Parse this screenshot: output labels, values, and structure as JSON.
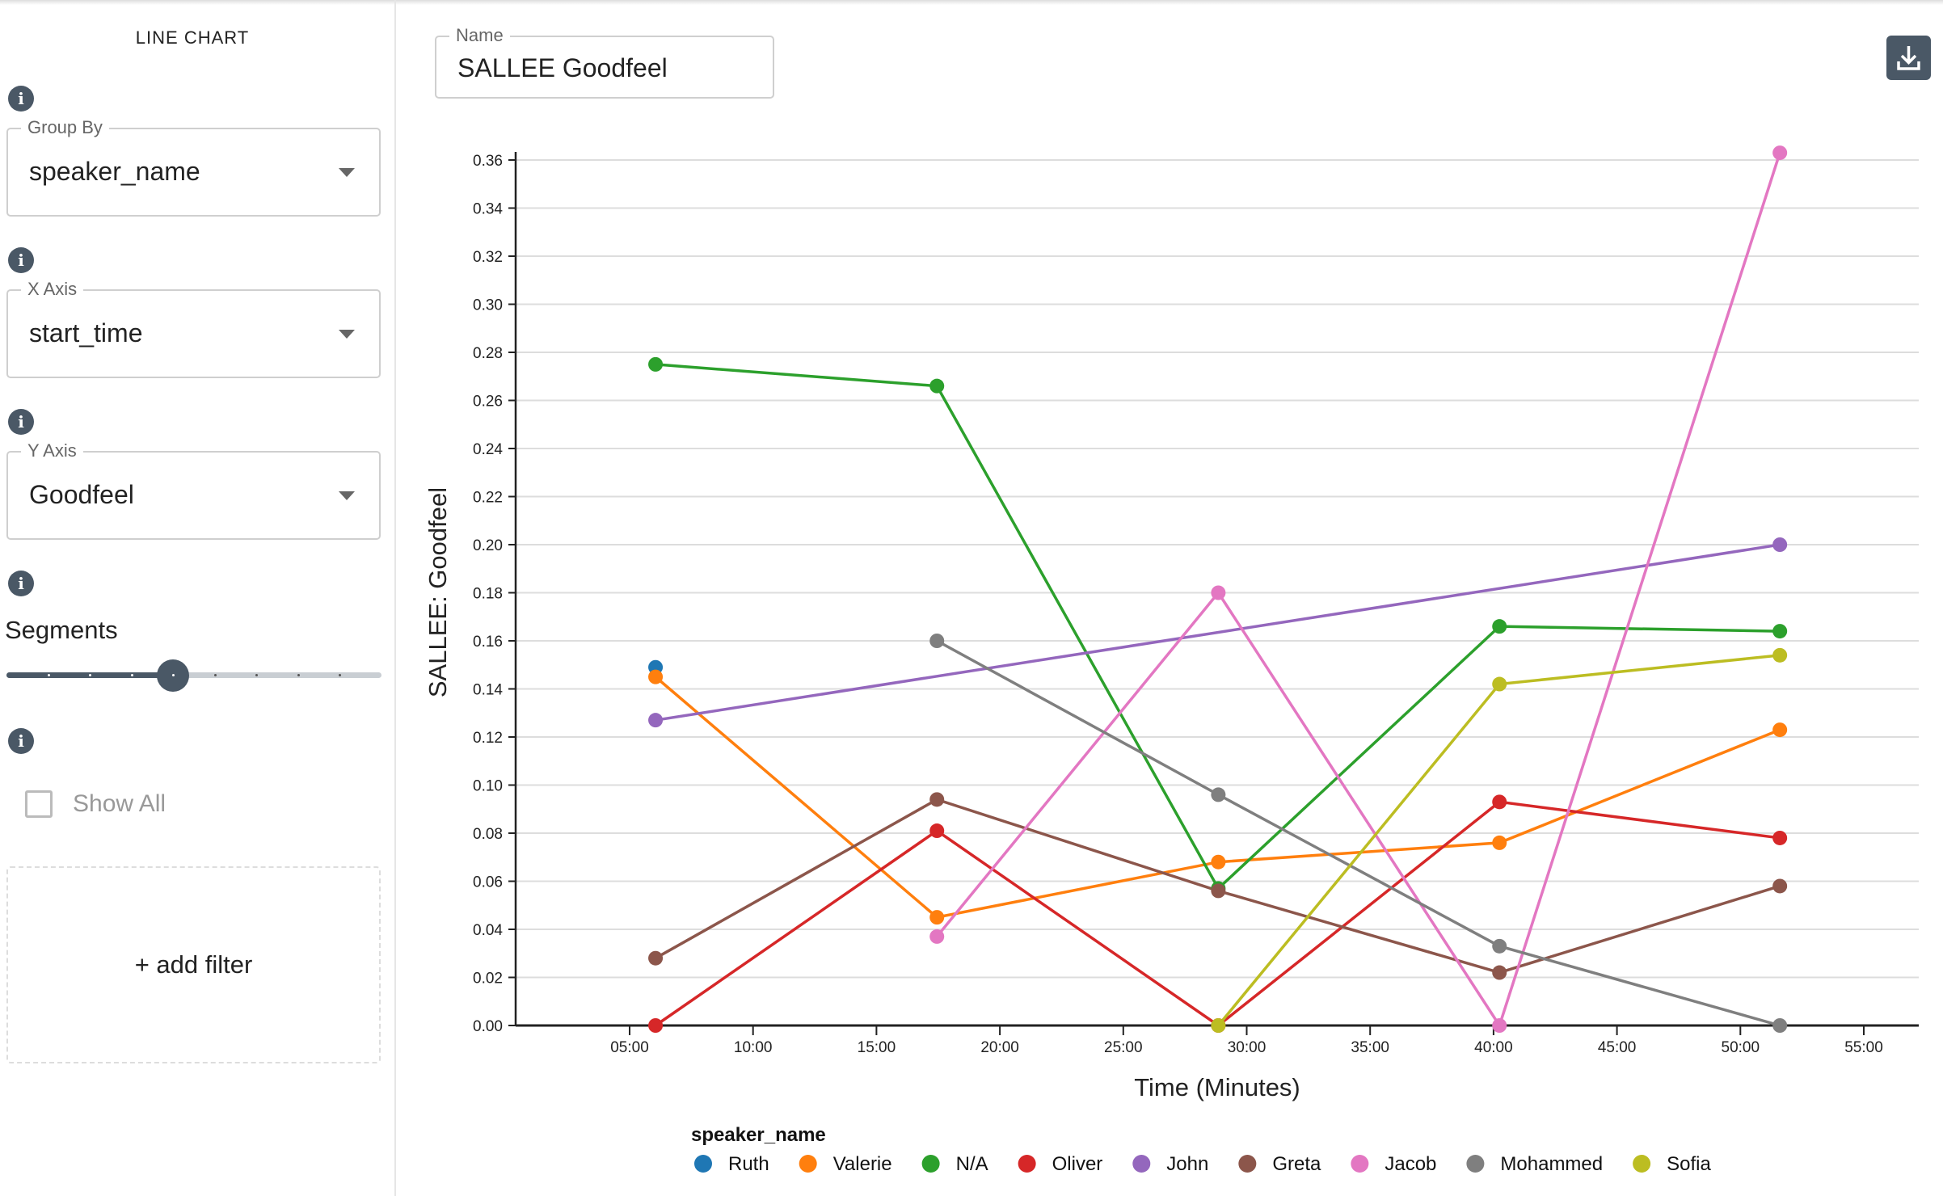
{
  "sidebar": {
    "title": "LINE CHART",
    "group_by": {
      "label": "Group By",
      "value": "speaker_name"
    },
    "x_axis": {
      "label": "X Axis",
      "value": "start_time"
    },
    "y_axis": {
      "label": "Y Axis",
      "value": "Goodfeel"
    },
    "segments": {
      "label": "Segments",
      "min": 1,
      "max": 10,
      "value": 5
    },
    "show_all": {
      "label": "Show All",
      "checked": false
    },
    "add_filter": "+ add filter"
  },
  "name_field": {
    "label": "Name",
    "value": "SALLEE Goodfeel"
  },
  "chart_data": {
    "type": "line",
    "xlabel": "Time (Minutes)",
    "ylabel": "SALLEE: Goodfeel",
    "xlim": [
      0,
      57.5
    ],
    "ylim": [
      0,
      0.36
    ],
    "x_ticks": [
      "05:00",
      "10:00",
      "15:00",
      "20:00",
      "25:00",
      "30:00",
      "35:00",
      "40:00",
      "45:00",
      "50:00",
      "55:00"
    ],
    "x_tick_values": [
      5,
      10,
      15,
      20,
      25,
      30,
      35,
      40,
      45,
      50,
      55
    ],
    "y_ticks": [
      "0.00",
      "0.02",
      "0.04",
      "0.06",
      "0.08",
      "0.10",
      "0.12",
      "0.14",
      "0.16",
      "0.18",
      "0.20",
      "0.22",
      "0.24",
      "0.26",
      "0.28",
      "0.30",
      "0.32",
      "0.34",
      "0.36"
    ],
    "grid": true,
    "legend_title": "speaker_name",
    "legend_position": "bottom",
    "x": [
      6.05,
      17.45,
      28.85,
      40.24,
      51.6
    ],
    "series": [
      {
        "name": "Ruth",
        "color": "#1f77b4",
        "values": [
          0.149,
          null,
          null,
          null,
          null
        ]
      },
      {
        "name": "Valerie",
        "color": "#ff7f0e",
        "values": [
          0.145,
          0.045,
          0.068,
          0.076,
          0.123
        ]
      },
      {
        "name": "N/A",
        "color": "#2ca02c",
        "values": [
          0.275,
          0.266,
          0.057,
          0.166,
          0.164
        ]
      },
      {
        "name": "Oliver",
        "color": "#d62728",
        "values": [
          0.0,
          0.081,
          0.0,
          0.093,
          0.078
        ]
      },
      {
        "name": "John",
        "color": "#9467bd",
        "values": [
          0.127,
          null,
          null,
          null,
          0.2
        ]
      },
      {
        "name": "Greta",
        "color": "#8c564b",
        "values": [
          0.028,
          0.094,
          0.056,
          0.022,
          0.058
        ]
      },
      {
        "name": "Jacob",
        "color": "#e377c2",
        "values": [
          null,
          0.037,
          0.18,
          0.0,
          0.363
        ]
      },
      {
        "name": "Mohammed",
        "color": "#7f7f7f",
        "values": [
          null,
          0.16,
          0.096,
          0.033,
          0.0
        ]
      },
      {
        "name": "Sofia",
        "color": "#bcbd22",
        "values": [
          null,
          null,
          0.0,
          0.142,
          0.154
        ]
      }
    ]
  }
}
